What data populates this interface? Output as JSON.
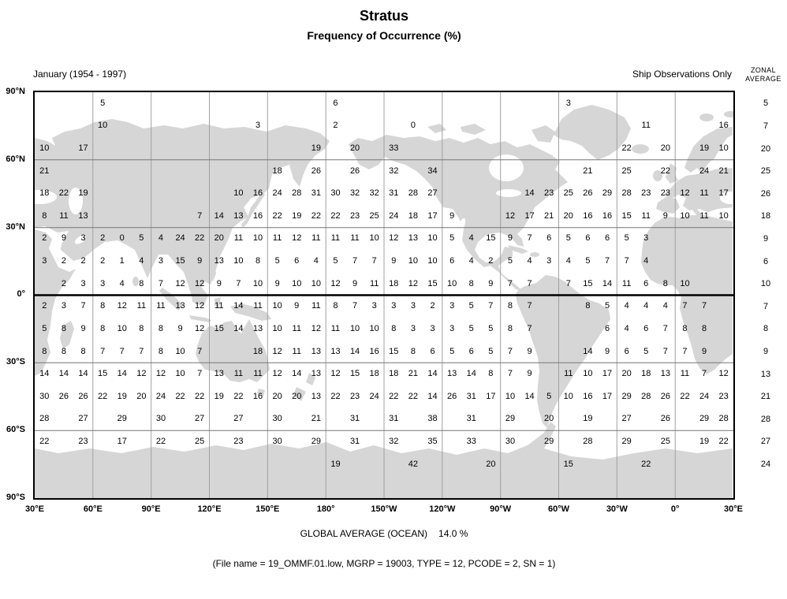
{
  "chart_data": {
    "type": "heatmap",
    "title": "Stratus",
    "subtitle": "Frequency of Occurrence (%)",
    "period": "January (1954 - 1997)",
    "source": "Ship Observations Only",
    "projection": "equirectangular world map, Pacific-centered, 30°E to 30°E",
    "units": "percent frequency of occurrence",
    "lon_ticks": [
      "30°E",
      "60°E",
      "90°E",
      "120°E",
      "150°E",
      "180°",
      "150°W",
      "120°W",
      "90°W",
      "60°W",
      "30°W",
      "0°",
      "30°E"
    ],
    "lat_ticks": [
      "90°N",
      "60°N",
      "30°N",
      "0°",
      "30°S",
      "60°S",
      "90°S"
    ],
    "grid": {
      "cols": 36,
      "rows": 18,
      "description": "10-degree cells, columns run eastward from 30E wrapping to 30E, rows run 90N to 90S; empty string = no ship data (land)",
      "values": [
        [
          "",
          "",
          "",
          "5",
          "",
          "",
          "",
          "",
          "",
          "",
          "",
          "",
          "",
          "",
          "",
          "6",
          "",
          "",
          "",
          "",
          "",
          "",
          "",
          "",
          "",
          "",
          "",
          "3",
          "",
          "",
          "",
          "",
          "",
          "",
          "",
          ""
        ],
        [
          "",
          "",
          "",
          "10",
          "",
          "",
          "",
          "",
          "",
          "",
          "",
          "3",
          "",
          "",
          "",
          "2",
          "",
          "",
          "",
          "0",
          "",
          "",
          "",
          "",
          "",
          "",
          "",
          "",
          "",
          "",
          "",
          "11",
          "",
          "",
          "",
          "16"
        ],
        [
          "10",
          "",
          "17",
          "",
          "",
          "",
          "",
          "",
          "",
          "",
          "",
          "",
          "",
          "",
          "19",
          "",
          "20",
          "",
          "33",
          "",
          "",
          "",
          "",
          "",
          "",
          "",
          "",
          "",
          "",
          "",
          "22",
          "",
          "20",
          "",
          "19",
          "10"
        ],
        [
          "21",
          "",
          "",
          "",
          "",
          "",
          "",
          "",
          "",
          "",
          "",
          "",
          "18",
          "",
          "26",
          "",
          "26",
          "",
          "32",
          "",
          "34",
          "",
          "",
          "",
          "",
          "",
          "",
          "",
          "21",
          "",
          "25",
          "",
          "22",
          "",
          "24",
          "21"
        ],
        [
          "18",
          "22",
          "19",
          "",
          "",
          "",
          "",
          "",
          "",
          "",
          "10",
          "16",
          "24",
          "28",
          "31",
          "30",
          "32",
          "32",
          "31",
          "28",
          "27",
          "",
          "",
          "",
          "",
          "14",
          "23",
          "25",
          "26",
          "29",
          "28",
          "23",
          "23",
          "12",
          "11",
          "17"
        ],
        [
          "8",
          "11",
          "13",
          "",
          "",
          "",
          "",
          "",
          "7",
          "14",
          "13",
          "16",
          "22",
          "19",
          "22",
          "22",
          "23",
          "25",
          "24",
          "18",
          "17",
          "9",
          "",
          "",
          "12",
          "17",
          "21",
          "20",
          "16",
          "16",
          "15",
          "11",
          "9",
          "10",
          "11",
          "10"
        ],
        [
          "2",
          "9",
          "3",
          "2",
          "0",
          "5",
          "4",
          "24",
          "22",
          "20",
          "11",
          "10",
          "11",
          "12",
          "11",
          "11",
          "11",
          "10",
          "12",
          "13",
          "10",
          "5",
          "4",
          "15",
          "9",
          "7",
          "6",
          "5",
          "6",
          "6",
          "5",
          "3",
          "",
          "",
          "",
          ""
        ],
        [
          "3",
          "2",
          "2",
          "2",
          "1",
          "4",
          "3",
          "15",
          "9",
          "13",
          "10",
          "8",
          "5",
          "6",
          "4",
          "5",
          "7",
          "7",
          "9",
          "10",
          "10",
          "6",
          "4",
          "2",
          "5",
          "4",
          "3",
          "4",
          "5",
          "7",
          "7",
          "4",
          "",
          "",
          "",
          ""
        ],
        [
          "",
          "2",
          "3",
          "3",
          "4",
          "8",
          "7",
          "12",
          "12",
          "9",
          "7",
          "10",
          "9",
          "10",
          "10",
          "12",
          "9",
          "11",
          "18",
          "12",
          "15",
          "10",
          "8",
          "9",
          "7",
          "7",
          "",
          "7",
          "15",
          "14",
          "11",
          "6",
          "8",
          "10",
          "",
          ""
        ],
        [
          "2",
          "3",
          "7",
          "8",
          "12",
          "11",
          "11",
          "13",
          "12",
          "11",
          "14",
          "11",
          "10",
          "9",
          "11",
          "8",
          "7",
          "3",
          "3",
          "3",
          "2",
          "3",
          "5",
          "7",
          "8",
          "7",
          "",
          "",
          "8",
          "5",
          "4",
          "4",
          "4",
          "7",
          "7",
          ""
        ],
        [
          "5",
          "8",
          "9",
          "8",
          "10",
          "8",
          "8",
          "9",
          "12",
          "15",
          "14",
          "13",
          "10",
          "11",
          "12",
          "11",
          "10",
          "10",
          "8",
          "3",
          "3",
          "3",
          "5",
          "5",
          "8",
          "7",
          "",
          "",
          "",
          "6",
          "4",
          "6",
          "7",
          "8",
          "8",
          ""
        ],
        [
          "8",
          "8",
          "8",
          "7",
          "7",
          "7",
          "8",
          "10",
          "7",
          "",
          "",
          "18",
          "12",
          "11",
          "13",
          "13",
          "14",
          "16",
          "15",
          "8",
          "6",
          "5",
          "6",
          "5",
          "7",
          "9",
          "",
          "",
          "14",
          "9",
          "6",
          "5",
          "7",
          "7",
          "9",
          ""
        ],
        [
          "14",
          "14",
          "14",
          "15",
          "14",
          "12",
          "12",
          "10",
          "7",
          "13",
          "11",
          "11",
          "12",
          "14",
          "13",
          "12",
          "15",
          "18",
          "18",
          "21",
          "14",
          "13",
          "14",
          "8",
          "7",
          "9",
          "",
          "11",
          "10",
          "17",
          "20",
          "18",
          "13",
          "11",
          "7",
          "12"
        ],
        [
          "30",
          "26",
          "26",
          "22",
          "19",
          "20",
          "24",
          "22",
          "22",
          "19",
          "22",
          "16",
          "20",
          "20",
          "13",
          "22",
          "23",
          "24",
          "22",
          "22",
          "14",
          "26",
          "31",
          "17",
          "10",
          "14",
          "5",
          "10",
          "16",
          "17",
          "29",
          "28",
          "26",
          "22",
          "24",
          "23"
        ],
        [
          "28",
          "",
          "27",
          "",
          "29",
          "",
          "30",
          "",
          "27",
          "",
          "27",
          "",
          "30",
          "",
          "21",
          "",
          "31",
          "",
          "31",
          "",
          "38",
          "",
          "31",
          "",
          "29",
          "",
          "20",
          "",
          "19",
          "",
          "27",
          "",
          "26",
          "",
          "29",
          "28"
        ],
        [
          "22",
          "",
          "23",
          "",
          "17",
          "",
          "22",
          "",
          "25",
          "",
          "23",
          "",
          "30",
          "",
          "29",
          "",
          "31",
          "",
          "32",
          "",
          "35",
          "",
          "33",
          "",
          "30",
          "",
          "29",
          "",
          "28",
          "",
          "29",
          "",
          "25",
          "",
          "19",
          "22"
        ],
        [
          "",
          "",
          "",
          "",
          "",
          "",
          "",
          "",
          "",
          "",
          "",
          "",
          "",
          "",
          "",
          "19",
          "",
          "",
          "",
          "42",
          "",
          "",
          "",
          "20",
          "",
          "",
          "",
          "15",
          "",
          "",
          "",
          "22",
          "",
          "",
          "",
          ""
        ],
        [
          "",
          "",
          "",
          "",
          "",
          "",
          "",
          "",
          "",
          "",
          "",
          "",
          "",
          "",
          "",
          "",
          "",
          "",
          "",
          "",
          "",
          "",
          "",
          "",
          "",
          "",
          "",
          "",
          "",
          "",
          "",
          "",
          "",
          "",
          "",
          ""
        ]
      ]
    },
    "zonal_average": {
      "header_lines": [
        "ZONAL",
        "AVERAGE"
      ],
      "values": [
        "5",
        "7",
        "20",
        "25",
        "26",
        "18",
        "9",
        "6",
        "10",
        "7",
        "8",
        "9",
        "13",
        "21",
        "28",
        "27",
        "24",
        ""
      ]
    },
    "global_average_label": "GLOBAL AVERAGE (OCEAN)",
    "global_average_value": "14.0 %",
    "file_info": "(File name = 19_OMMF.01.low, MGRP = 19003, TYPE = 12, PCODE = 2, SN = 1)",
    "colors": {
      "land": "#d6d6d6",
      "grid_vertical": "#a0a0a0",
      "grid_horizontal": "#777777",
      "equator_and_border": "#000000",
      "text": "#000000",
      "background": "#ffffff"
    }
  }
}
